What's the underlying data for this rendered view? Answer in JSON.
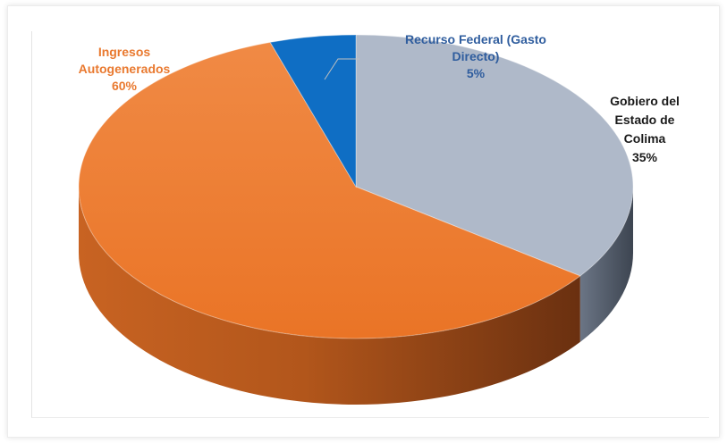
{
  "chart_data": {
    "type": "pie",
    "style": "3d",
    "slices": [
      {
        "label_lines": [
          "Gobiero del",
          "Estado de",
          "Colima"
        ],
        "value": 35,
        "pct_text": "35%",
        "color": "#afb9c9",
        "side_color": "#4f5867",
        "label_color": "#1a1a1a"
      },
      {
        "label_lines": [
          "Ingresos",
          "Autogenerados"
        ],
        "value": 60,
        "pct_text": "60%",
        "color": "#ed7a2b",
        "side_color": "#8c4416",
        "label_color": "#e9792f"
      },
      {
        "label_lines": [
          "Recurso Federal (Gasto",
          "Directo)"
        ],
        "value": 5,
        "pct_text": "5%",
        "color": "#0f6ec4",
        "side_color": "#0a4a86",
        "label_color": "#2f5d9e"
      }
    ]
  }
}
